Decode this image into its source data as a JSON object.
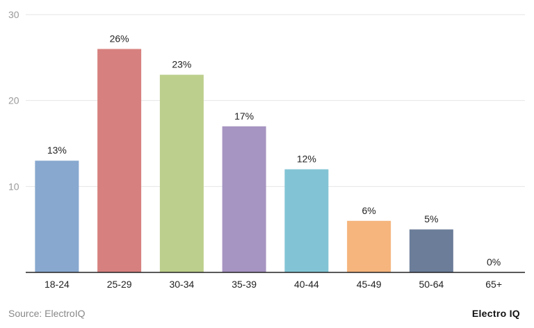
{
  "chart_data": {
    "type": "bar",
    "categories": [
      "18-24",
      "25-29",
      "30-34",
      "35-39",
      "40-44",
      "45-49",
      "50-64",
      "65+"
    ],
    "values": [
      13,
      26,
      23,
      17,
      12,
      6,
      5,
      0
    ],
    "data_labels": [
      "13%",
      "26%",
      "23%",
      "17%",
      "12%",
      "6%",
      "5%",
      "0%"
    ],
    "colors": [
      "#88a8cf",
      "#d6817f",
      "#bdcf8c",
      "#a694c2",
      "#82c4d5",
      "#f5b57d",
      "#6b7d99",
      "#cccccc"
    ],
    "yticks": [
      "10",
      "20",
      "30"
    ],
    "ylim": [
      0,
      30
    ],
    "grid": true,
    "title": "",
    "xlabel": "",
    "ylabel": ""
  },
  "footer": {
    "source": "Source: ElectroIQ",
    "brand": "Electro IQ"
  }
}
